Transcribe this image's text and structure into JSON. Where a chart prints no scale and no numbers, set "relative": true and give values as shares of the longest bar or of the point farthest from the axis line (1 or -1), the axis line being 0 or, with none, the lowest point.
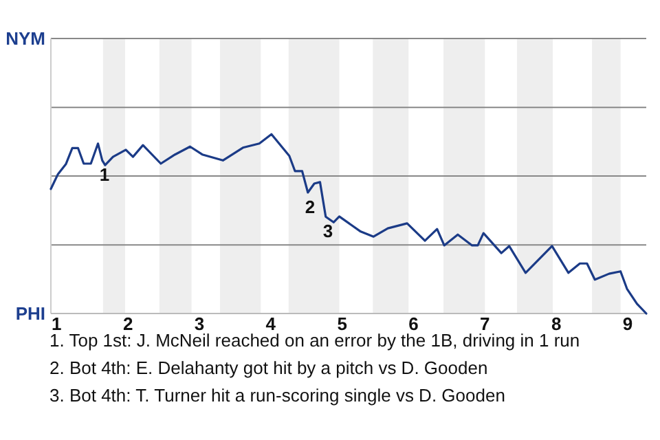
{
  "chart_data": {
    "type": "line",
    "relative": true,
    "x": [
      0.92,
      1.02,
      1.13,
      1.22,
      1.3,
      1.38,
      1.48,
      1.58,
      1.64,
      1.68,
      1.79,
      1.97,
      2.07,
      2.21,
      2.46,
      2.66,
      2.87,
      3.04,
      3.33,
      3.61,
      3.84,
      4.01,
      4.26,
      4.34,
      4.44,
      4.52,
      4.61,
      4.69,
      4.77,
      4.88,
      4.96,
      5.26,
      5.44,
      5.64,
      5.91,
      6.16,
      6.33,
      6.43,
      6.62,
      6.82,
      6.9,
      6.98,
      7.23,
      7.34,
      7.57,
      7.94,
      8.17,
      8.33,
      8.43,
      8.54,
      8.74,
      8.9,
      8.99,
      9.13,
      9.26
    ],
    "series": [
      {
        "color": "#1b3b87",
        "values": [
          0.695,
          0.778,
          0.833,
          0.923,
          0.923,
          0.836,
          0.836,
          0.948,
          0.854,
          0.828,
          0.874,
          0.913,
          0.874,
          0.939,
          0.836,
          0.887,
          0.931,
          0.887,
          0.854,
          0.925,
          0.948,
          1,
          0.879,
          0.794,
          0.794,
          0.675,
          0.725,
          0.733,
          0.54,
          0.509,
          0.541,
          0.457,
          0.429,
          0.475,
          0.503,
          0.406,
          0.471,
          0.38,
          0.44,
          0.38,
          0.38,
          0.448,
          0.337,
          0.376,
          0.227,
          0.376,
          0.227,
          0.279,
          0.279,
          0.189,
          0.222,
          0.235,
          0.138,
          0.054,
          0
        ]
      }
    ],
    "xlim": [
      0.92,
      9.26
    ],
    "xticks": [
      1,
      2,
      3,
      4,
      5,
      6,
      7,
      8,
      9
    ],
    "ref_lines": [
      {
        "axis": "y",
        "value": 0.383,
        "color": "#888888"
      },
      {
        "axis": "y",
        "value": 0.767,
        "color": "#888888"
      },
      {
        "axis": "y",
        "value": 1.15,
        "color": "#888888"
      },
      {
        "axis": "y",
        "value": 1.534,
        "color": "#888888"
      }
    ],
    "bands": [
      {
        "axis": "x",
        "from": 1.65,
        "to": 1.96,
        "color": "#eeeeee"
      },
      {
        "axis": "x",
        "from": 2.44,
        "to": 2.89,
        "color": "#eeeeee"
      },
      {
        "axis": "x",
        "from": 3.29,
        "to": 3.86,
        "color": "#eeeeee"
      },
      {
        "axis": "x",
        "from": 4.25,
        "to": 4.96,
        "color": "#eeeeee"
      },
      {
        "axis": "x",
        "from": 5.43,
        "to": 5.93,
        "color": "#eeeeee"
      },
      {
        "axis": "x",
        "from": 6.42,
        "to": 7,
        "color": "#eeeeee"
      },
      {
        "axis": "x",
        "from": 7.45,
        "to": 7.95,
        "color": "#eeeeee"
      },
      {
        "axis": "x",
        "from": 8.5,
        "to": 8.9,
        "color": "#eeeeee"
      }
    ],
    "annotations": [
      "NYM",
      "PHI",
      {
        "text": "1",
        "x": 1.64,
        "y": 0.854
      },
      {
        "text": "2",
        "x": 4.52,
        "y": 0.675
      },
      {
        "text": "3",
        "x": 4.77,
        "y": 0.54
      },
      "1. Top 1st: J. McNeil reached on an error by the 1B, driving in 1 run",
      "2. Bot 4th: E. Delahanty got hit by a pitch vs D. Gooden",
      "3. Bot 4th: T. Turner hit a run-scoring single vs D. Gooden"
    ]
  }
}
